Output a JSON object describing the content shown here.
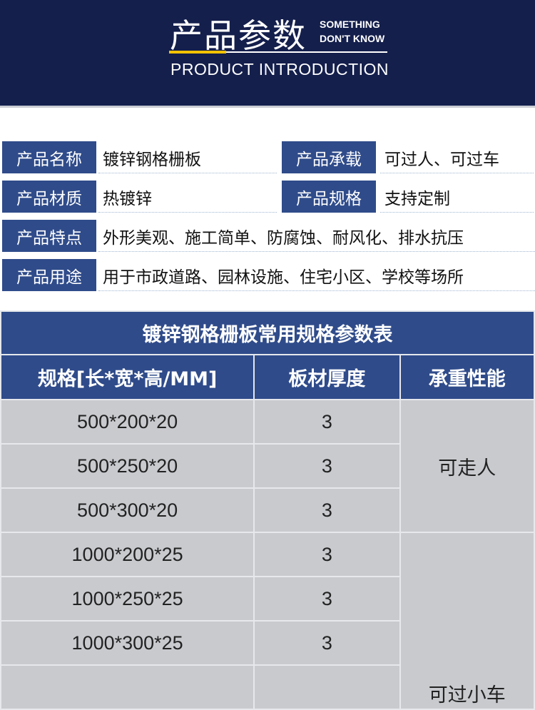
{
  "header": {
    "title": "产品参数",
    "sub1": "SOMETHING",
    "sub2": "DON'T KNOW",
    "en": "PRODUCT INTRODUCTION"
  },
  "info": [
    {
      "label": "产品名称",
      "value": "镀锌钢格栅板"
    },
    {
      "label": "产品承载",
      "value": "可过人、可过车"
    },
    {
      "label": "产品材质",
      "value": "热镀锌"
    },
    {
      "label": "产品规格",
      "value": "支持定制"
    },
    {
      "label": "产品特点",
      "value": "外形美观、施工简单、防腐蚀、耐风化、排水抗压"
    },
    {
      "label": "产品用途",
      "value": "用于市政道路、园林设施、住宅小区、学校等场所"
    }
  ],
  "table": {
    "title": "镀锌钢格栅板常用规格参数表",
    "headers": [
      "规格[长*宽*高/MM]",
      "板材厚度",
      "承重性能"
    ],
    "rows": [
      [
        "500*200*20",
        "3"
      ],
      [
        "500*250*20",
        "3"
      ],
      [
        "500*300*20",
        "3"
      ],
      [
        "1000*200*25",
        "3"
      ],
      [
        "1000*250*25",
        "3"
      ],
      [
        "1000*300*25",
        "3"
      ]
    ],
    "load": [
      "可走人",
      "可过小车"
    ]
  },
  "colors": {
    "navy": "#141f4c",
    "blue": "#2f4b8a",
    "yellow": "#f2c200",
    "cell": "#c8cace"
  }
}
